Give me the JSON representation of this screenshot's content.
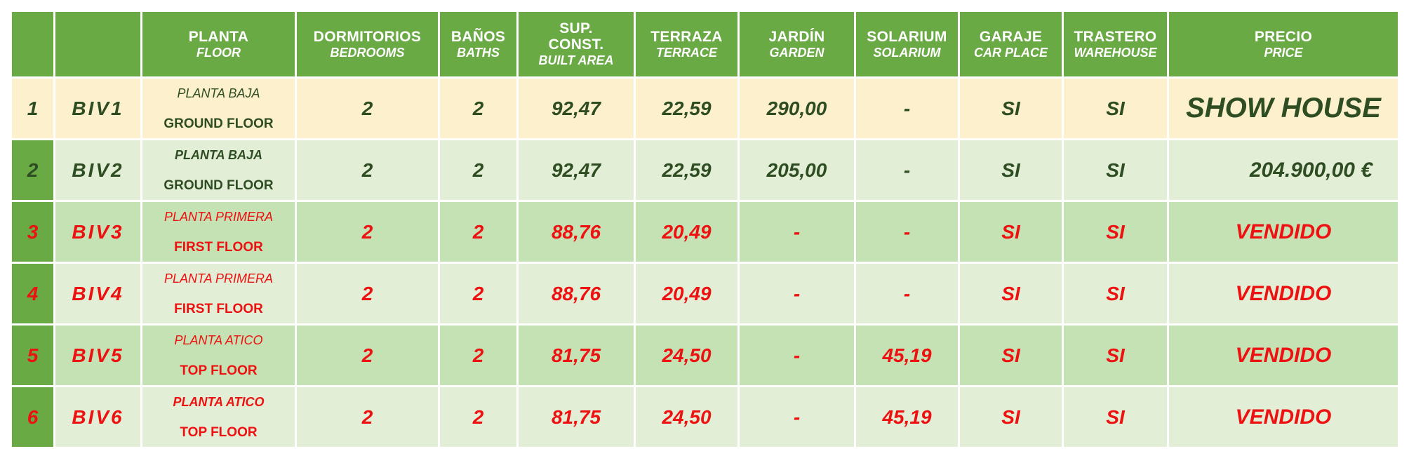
{
  "headers": [
    {
      "main": "",
      "sub": ""
    },
    {
      "main": "",
      "sub": ""
    },
    {
      "main": "PLANTA",
      "sub": "FLOOR"
    },
    {
      "main": "DORMITORIOS",
      "sub": "BEDROOMS"
    },
    {
      "main": "BAÑOS",
      "sub": "BATHS"
    },
    {
      "main": "SUP. CONST.",
      "sub": "BUILT AREA"
    },
    {
      "main": "TERRAZA",
      "sub": "TERRACE"
    },
    {
      "main": "JARDÍN",
      "sub": "GARDEN"
    },
    {
      "main": "SOLARIUM",
      "sub": "SOLARIUM"
    },
    {
      "main": "GARAJE",
      "sub": "CAR PLACE"
    },
    {
      "main": "TRASTERO",
      "sub": "WAREHOUSE"
    },
    {
      "main": "PRECIO",
      "sub": "PRICE"
    }
  ],
  "rows": [
    {
      "num": "1",
      "code": "BIV1",
      "floor_es": "PLANTA BAJA",
      "floor_en": "GROUND FLOOR",
      "bedrooms": "2",
      "baths": "2",
      "built_area": "92,47",
      "terrace": "22,59",
      "garden": "290,00",
      "solarium": "-",
      "garage": "SI",
      "storage": "SI",
      "price": "SHOW HOUSE"
    },
    {
      "num": "2",
      "code": "BIV2",
      "floor_es": "PLANTA BAJA",
      "floor_en": "GROUND FLOOR",
      "bedrooms": "2",
      "baths": "2",
      "built_area": "92,47",
      "terrace": "22,59",
      "garden": "205,00",
      "solarium": "-",
      "garage": "SI",
      "storage": "SI",
      "price": "204.900,00 €"
    },
    {
      "num": "3",
      "code": "BIV3",
      "floor_es": "PLANTA PRIMERA",
      "floor_en": "FIRST FLOOR",
      "bedrooms": "2",
      "baths": "2",
      "built_area": "88,76",
      "terrace": "20,49",
      "garden": "-",
      "solarium": "-",
      "garage": "SI",
      "storage": "SI",
      "price": "VENDIDO"
    },
    {
      "num": "4",
      "code": "BIV4",
      "floor_es": "PLANTA PRIMERA",
      "floor_en": "FIRST FLOOR",
      "bedrooms": "2",
      "baths": "2",
      "built_area": "88,76",
      "terrace": "20,49",
      "garden": "-",
      "solarium": "-",
      "garage": "SI",
      "storage": "SI",
      "price": "VENDIDO"
    },
    {
      "num": "5",
      "code": "BIV5",
      "floor_es": "PLANTA ATICO",
      "floor_en": "TOP FLOOR",
      "bedrooms": "2",
      "baths": "2",
      "built_area": "81,75",
      "terrace": "24,50",
      "garden": "-",
      "solarium": "45,19",
      "garage": "SI",
      "storage": "SI",
      "price": "VENDIDO"
    },
    {
      "num": "6",
      "code": "BIV6",
      "floor_es": "PLANTA ATICO",
      "floor_en": "TOP FLOOR",
      "bedrooms": "2",
      "baths": "2",
      "built_area": "81,75",
      "terrace": "24,50",
      "garden": "-",
      "solarium": "45,19",
      "garage": "SI",
      "storage": "SI",
      "price": "VENDIDO"
    }
  ],
  "colors": {
    "header_green": "#6aaa45",
    "show_row": "#fdf0cc",
    "light_row": "#e2eed6",
    "mid_row": "#c4e2b4",
    "available_text": "#2f4d23",
    "sold_text": "#ee1111"
  }
}
